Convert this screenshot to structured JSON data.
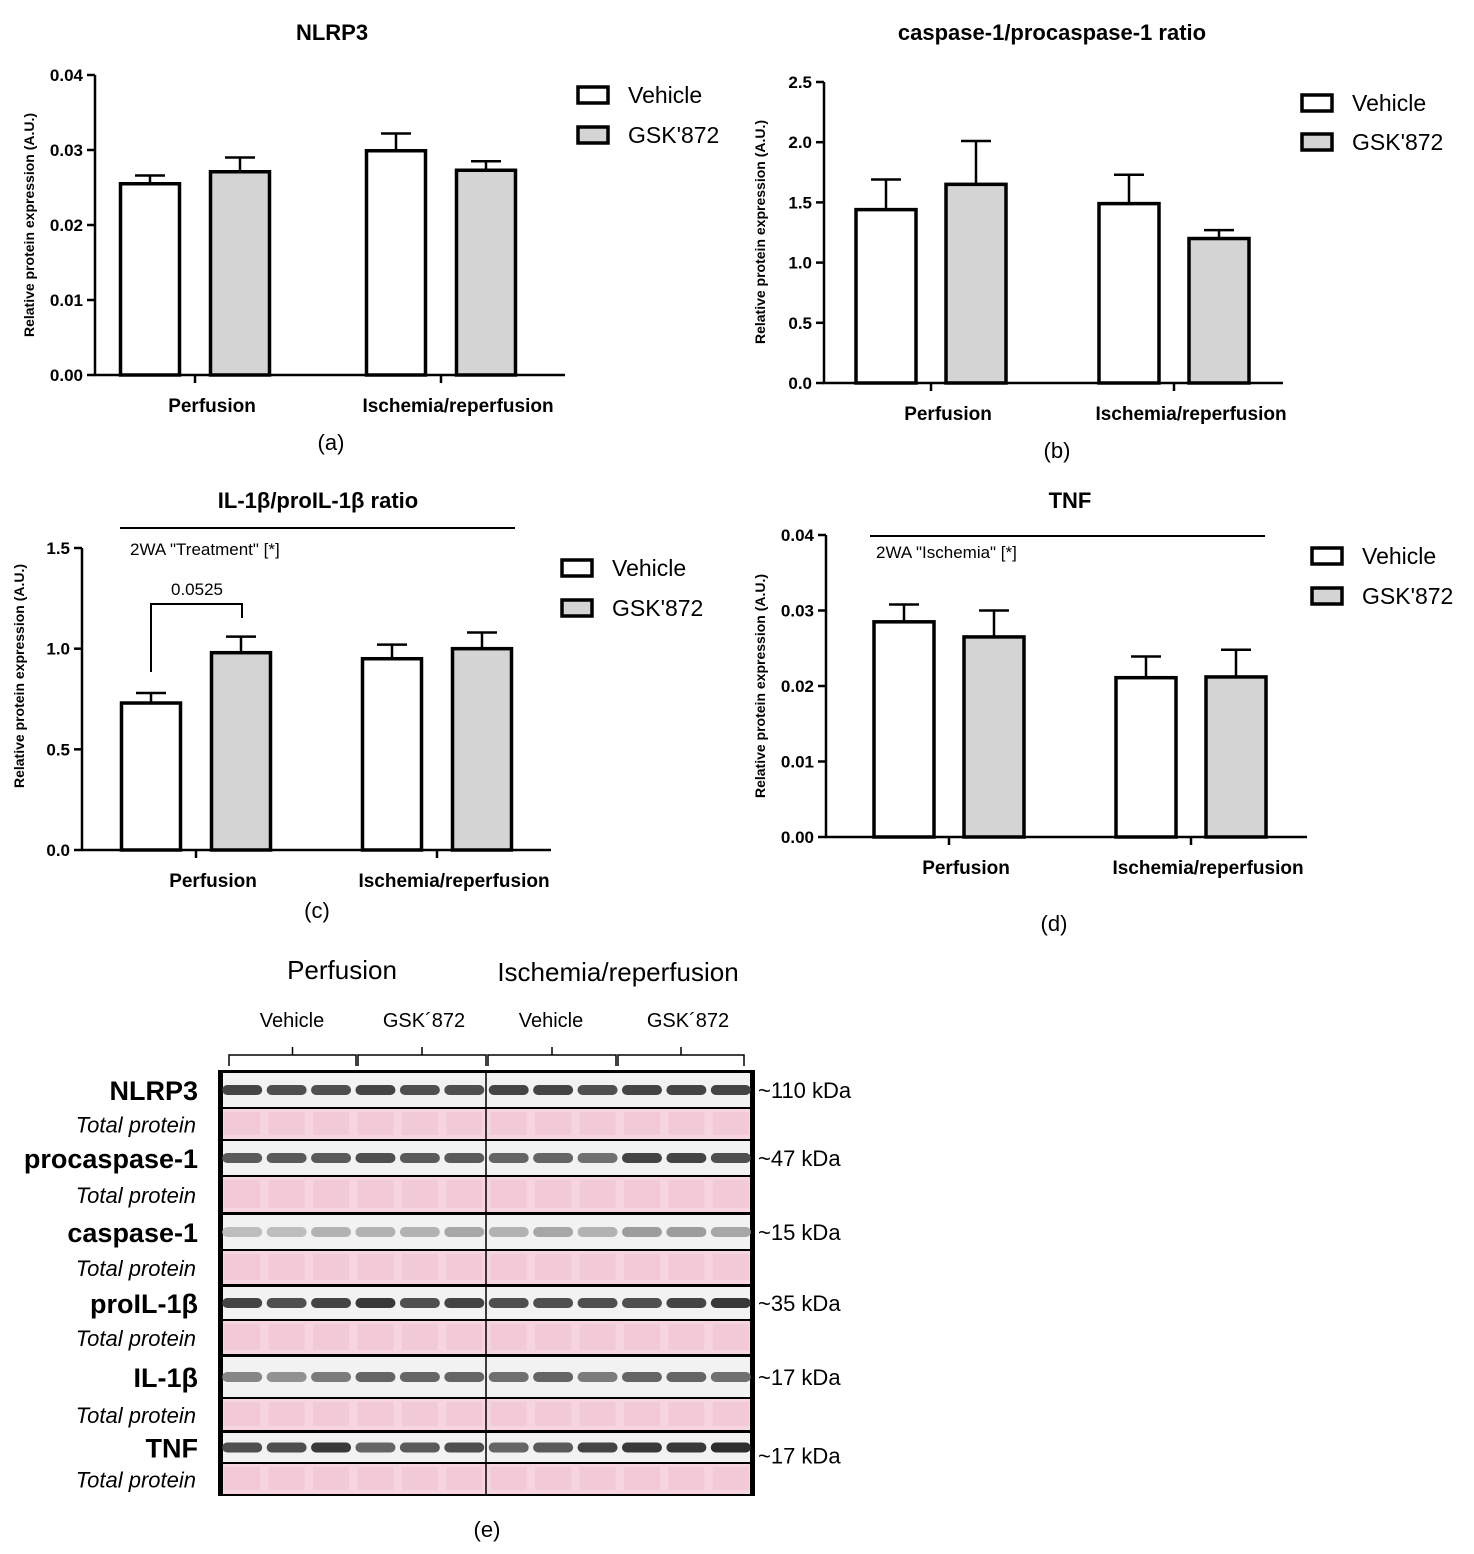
{
  "legend": {
    "vehicle": "Vehicle",
    "gsk": "GSK'872"
  },
  "colors": {
    "vehicle_fill": "#ffffff",
    "gsk_fill": "#d4d4d4",
    "stroke": "#000000",
    "stain": "#f7d4e1",
    "stain_dark": "#efbfd0"
  },
  "chart_data": [
    {
      "panel": "(a)",
      "type": "bar",
      "title": "NLRP3",
      "ylabel": "Relative protein expression (A.U.)",
      "ylim": [
        0,
        0.04
      ],
      "yticks": [
        "0.00",
        "0.01",
        "0.02",
        "0.03",
        "0.04"
      ],
      "categories": [
        "Perfusion",
        "Ischemia/reperfusion"
      ],
      "series": [
        {
          "name": "Vehicle",
          "values": [
            0.0255,
            0.0299
          ],
          "errors": [
            0.0011,
            0.0023
          ]
        },
        {
          "name": "GSK'872",
          "values": [
            0.0271,
            0.0273
          ],
          "errors": [
            0.0019,
            0.0012
          ]
        }
      ],
      "annotations": []
    },
    {
      "panel": "(b)",
      "type": "bar",
      "title": "caspase-1/procaspase-1 ratio",
      "ylabel": "Relative protein expression (A.U.)",
      "ylim": [
        0,
        2.5
      ],
      "yticks": [
        "0.0",
        "0.5",
        "1.0",
        "1.5",
        "2.0",
        "2.5"
      ],
      "categories": [
        "Perfusion",
        "Ischemia/reperfusion"
      ],
      "series": [
        {
          "name": "Vehicle",
          "values": [
            1.44,
            1.49
          ],
          "errors": [
            0.25,
            0.24
          ]
        },
        {
          "name": "GSK'872",
          "values": [
            1.65,
            1.2
          ],
          "errors": [
            0.36,
            0.07
          ]
        }
      ],
      "annotations": []
    },
    {
      "panel": "(c)",
      "type": "bar",
      "title": "IL-1β/proIL-1β ratio",
      "ylabel": "Relative protein expression (A.U.)",
      "ylim": [
        0,
        1.5
      ],
      "yticks": [
        "0.0",
        "0.5",
        "1.0",
        "1.5"
      ],
      "categories": [
        "Perfusion",
        "Ischemia/reperfusion"
      ],
      "series": [
        {
          "name": "Vehicle",
          "values": [
            0.73,
            0.95
          ],
          "errors": [
            0.05,
            0.07
          ]
        },
        {
          "name": "GSK'872",
          "values": [
            0.98,
            1.0
          ],
          "errors": [
            0.08,
            0.08
          ]
        }
      ],
      "annotations": [
        "2WA \"Treatment\" [*]",
        "0.0525"
      ]
    },
    {
      "panel": "(d)",
      "type": "bar",
      "title": "TNF",
      "ylabel": "Relative protein expression (A.U.)",
      "ylim": [
        0,
        0.04
      ],
      "yticks": [
        "0.00",
        "0.01",
        "0.02",
        "0.03",
        "0.04"
      ],
      "categories": [
        "Perfusion",
        "Ischemia/reperfusion"
      ],
      "series": [
        {
          "name": "Vehicle",
          "values": [
            0.0285,
            0.0211
          ],
          "errors": [
            0.0023,
            0.0028
          ]
        },
        {
          "name": "GSK'872",
          "values": [
            0.0265,
            0.0212
          ],
          "errors": [
            0.0035,
            0.0036
          ]
        }
      ],
      "annotations": [
        "2WA \"Ischemia\" [*]"
      ]
    }
  ],
  "blot": {
    "panel": "(e)",
    "group_headers": [
      "Perfusion",
      "Ischemia/reperfusion"
    ],
    "treatment_headers": [
      "Vehicle",
      "GSK´872",
      "Vehicle",
      "GSK´872"
    ],
    "rows": [
      {
        "label": "NLRP3",
        "total": "Total protein",
        "kda": "~110 kDa",
        "intensity": [
          0.85,
          0.8,
          0.8,
          0.85,
          0.8,
          0.8,
          0.85,
          0.85,
          0.8,
          0.85,
          0.85,
          0.85
        ]
      },
      {
        "label": "procaspase-1",
        "total": "Total protein",
        "kda": "~47 kDa",
        "intensity": [
          0.75,
          0.75,
          0.75,
          0.8,
          0.75,
          0.75,
          0.7,
          0.7,
          0.65,
          0.85,
          0.85,
          0.8
        ]
      },
      {
        "label": "caspase-1",
        "total": "Total protein",
        "kda": "~15 kDa",
        "intensity": [
          0.3,
          0.3,
          0.35,
          0.35,
          0.35,
          0.4,
          0.35,
          0.4,
          0.35,
          0.45,
          0.45,
          0.4
        ]
      },
      {
        "label": "proIL-1β",
        "total": "Total protein",
        "kda": "~35 kDa",
        "intensity": [
          0.85,
          0.8,
          0.85,
          0.9,
          0.8,
          0.85,
          0.8,
          0.8,
          0.8,
          0.8,
          0.85,
          0.9
        ]
      },
      {
        "label": "IL-1β",
        "total": "Total protein",
        "kda": "~17 kDa",
        "intensity": [
          0.55,
          0.5,
          0.6,
          0.7,
          0.7,
          0.7,
          0.65,
          0.7,
          0.6,
          0.7,
          0.7,
          0.65
        ]
      },
      {
        "label": "TNF",
        "total": "Total protein",
        "kda": "~17 kDa",
        "intensity": [
          0.8,
          0.8,
          0.9,
          0.7,
          0.75,
          0.8,
          0.7,
          0.75,
          0.85,
          0.9,
          0.9,
          0.95
        ]
      }
    ]
  }
}
